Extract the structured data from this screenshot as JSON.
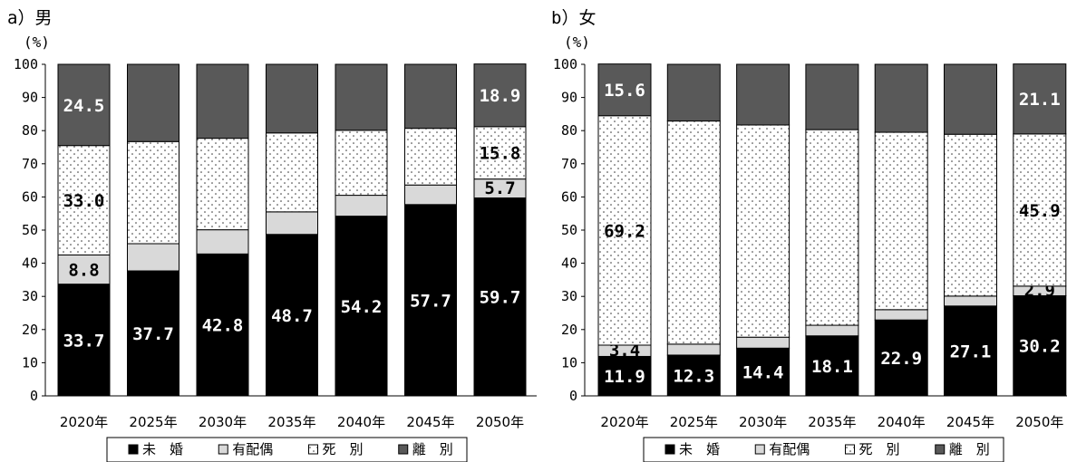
{
  "chart_data": [
    {
      "type": "bar",
      "stacked": true,
      "title": "a）男",
      "ylabel": "(%)",
      "ylim": [
        0,
        100
      ],
      "yticks": [
        0,
        10,
        20,
        30,
        40,
        50,
        60,
        70,
        80,
        90,
        100
      ],
      "categories": [
        "2020年",
        "2025年",
        "2030年",
        "2035年",
        "2040年",
        "2045年",
        "2050年"
      ],
      "series": [
        {
          "name": "未　婚",
          "values": [
            33.7,
            37.7,
            42.8,
            48.7,
            54.2,
            57.7,
            59.7
          ],
          "labels": [
            "33.7",
            "37.7",
            "42.8",
            "48.7",
            "54.2",
            "57.7",
            "59.7"
          ]
        },
        {
          "name": "有配偶",
          "values": [
            8.8,
            8.2,
            7.3,
            6.8,
            6.3,
            5.9,
            5.7
          ],
          "labels": [
            "8.8",
            "",
            "",
            "",
            "",
            "",
            "5.7"
          ]
        },
        {
          "name": "死　別",
          "values": [
            33.0,
            30.8,
            27.6,
            23.8,
            19.6,
            17.1,
            15.8
          ],
          "labels": [
            "33.0",
            "",
            "",
            "",
            "",
            "",
            "15.8"
          ]
        },
        {
          "name": "離　別",
          "values": [
            24.5,
            23.3,
            22.3,
            20.7,
            19.9,
            19.3,
            18.9
          ],
          "labels": [
            "24.5",
            "",
            "",
            "",
            "",
            "",
            "18.9"
          ]
        }
      ],
      "legend_position": "bottom"
    },
    {
      "type": "bar",
      "stacked": true,
      "title": "b）女",
      "ylabel": "(%)",
      "ylim": [
        0,
        100
      ],
      "yticks": [
        0,
        10,
        20,
        30,
        40,
        50,
        60,
        70,
        80,
        90,
        100
      ],
      "categories": [
        "2020年",
        "2025年",
        "2030年",
        "2035年",
        "2040年",
        "2045年",
        "2050年"
      ],
      "series": [
        {
          "name": "未　婚",
          "values": [
            11.9,
            12.3,
            14.4,
            18.1,
            22.9,
            27.1,
            30.2
          ],
          "labels": [
            "11.9",
            "12.3",
            "14.4",
            "18.1",
            "22.9",
            "27.1",
            "30.2"
          ]
        },
        {
          "name": "有配偶",
          "values": [
            3.4,
            3.3,
            3.3,
            3.2,
            3.1,
            3.0,
            2.9
          ],
          "labels": [
            "3.4",
            "",
            "",
            "",
            "",
            "",
            "2.9"
          ]
        },
        {
          "name": "死　別",
          "values": [
            69.2,
            67.3,
            64.0,
            59.0,
            53.5,
            48.8,
            45.9
          ],
          "labels": [
            "69.2",
            "",
            "",
            "",
            "",
            "",
            "45.9"
          ]
        },
        {
          "name": "離　別",
          "values": [
            15.6,
            17.1,
            18.3,
            19.7,
            20.5,
            21.1,
            21.1
          ],
          "labels": [
            "15.6",
            "",
            "",
            "",
            "",
            "",
            "21.1"
          ]
        }
      ],
      "legend_position": "bottom"
    }
  ],
  "legend": [
    {
      "marker": "■",
      "label": "未　婚"
    },
    {
      "marker": "□",
      "label": "有配偶"
    },
    {
      "marker": "□",
      "label": "死　別"
    },
    {
      "marker": "■",
      "label": "離　別"
    }
  ],
  "colors": {
    "series": [
      "#000000",
      "#d9d9d9",
      "#ffffff",
      "#595959"
    ],
    "label_on_dark": "#ffffff",
    "label_on_light": "#000000"
  }
}
